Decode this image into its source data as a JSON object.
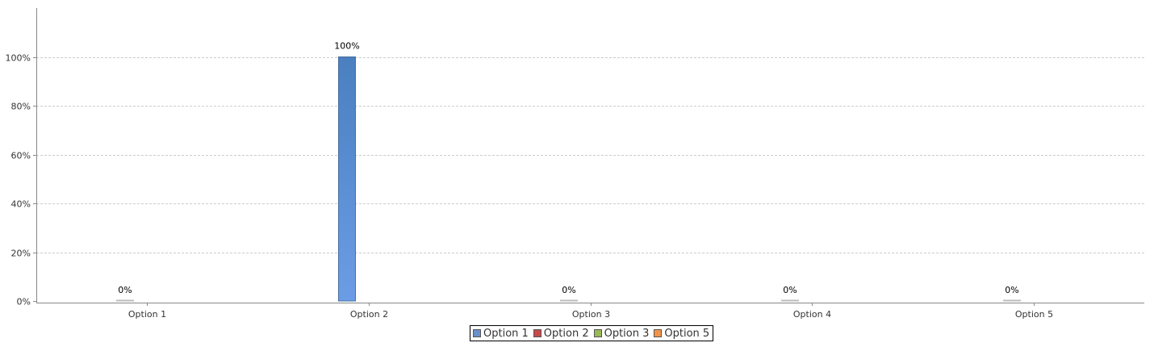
{
  "chart_data": {
    "type": "bar",
    "title": "",
    "xlabel": "",
    "ylabel": "",
    "categories": [
      "Option 1",
      "Option 2",
      "Option 3",
      "Option 4",
      "Option 5"
    ],
    "values": [
      0,
      100,
      0,
      0,
      0
    ],
    "data_labels": [
      "0%",
      "100%",
      "0%",
      "0%",
      "0%"
    ],
    "ylim": [
      0,
      120
    ],
    "yticks": [
      0,
      20,
      40,
      60,
      80,
      100
    ],
    "ytick_labels": [
      "0%",
      "20%",
      "40%",
      "60%",
      "80%",
      "100%"
    ],
    "grid": true,
    "legend_position": "bottom-center",
    "bar_color": "#5a8fd6",
    "legend": [
      {
        "label": "Option 1",
        "color": "#6a8fcb"
      },
      {
        "label": "Option 2",
        "color": "#c64a4a"
      },
      {
        "label": "Option 3",
        "color": "#98b954"
      },
      {
        "label": "Option 5",
        "color": "#f0944a"
      }
    ]
  }
}
